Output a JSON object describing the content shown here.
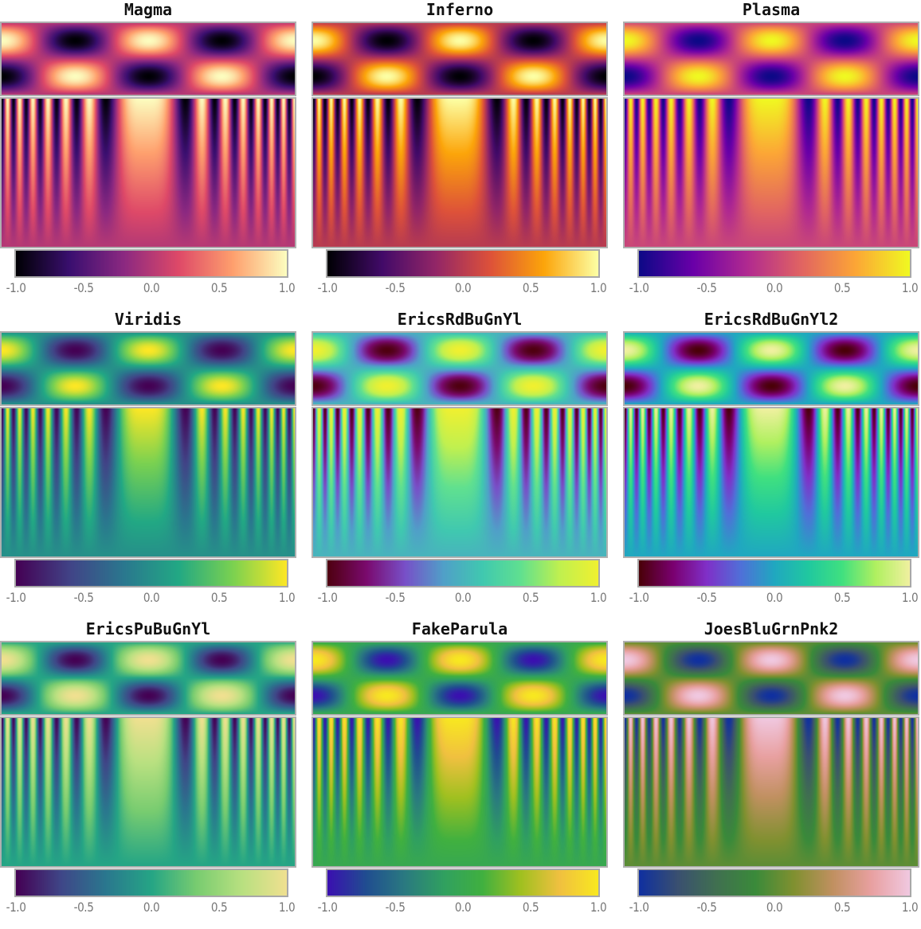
{
  "chart_data": {
    "type": "heatmap",
    "title": "",
    "colorbar_ticks": [
      "-1.0",
      "-0.5",
      "0.0",
      "0.5",
      "1.0"
    ],
    "colorbar_range": [
      -1,
      1
    ],
    "panels": [
      {
        "title": "Magma",
        "stops": [
          "#000004",
          "#3b0f70",
          "#8c2981",
          "#de4968",
          "#fe9f6d",
          "#fcfdbf"
        ]
      },
      {
        "title": "Inferno",
        "stops": [
          "#000004",
          "#420a68",
          "#932667",
          "#dd513a",
          "#fca50a",
          "#fcffa4"
        ]
      },
      {
        "title": "Plasma",
        "stops": [
          "#0d0887",
          "#6a00a8",
          "#b12a90",
          "#e16462",
          "#fca636",
          "#f0f921"
        ]
      },
      {
        "title": "Viridis",
        "stops": [
          "#440154",
          "#414487",
          "#2a788e",
          "#22a884",
          "#7ad151",
          "#fde725"
        ]
      },
      {
        "title": "EricsRdBuGnYl",
        "stops": [
          "#4f0010",
          "#7a0a6e",
          "#7850c8",
          "#50a0c8",
          "#40c8b0",
          "#60e090",
          "#c0f050",
          "#f0f030"
        ]
      },
      {
        "title": "EricsRdBuGnYl2",
        "stops": [
          "#4a0008",
          "#7a0070",
          "#8030c8",
          "#5070d8",
          "#20a8c0",
          "#20c8a0",
          "#40e080",
          "#b0f060",
          "#f0f0a0"
        ]
      },
      {
        "title": "EricsPuBuGnYl",
        "stops": [
          "#440154",
          "#3f4788",
          "#2a788e",
          "#25a585",
          "#78cc70",
          "#b8e080",
          "#f0e090"
        ]
      },
      {
        "title": "FakeParula",
        "stops": [
          "#3a10b0",
          "#204e90",
          "#2a7a80",
          "#30a060",
          "#40b040",
          "#a0c020",
          "#f0c040",
          "#f8e820"
        ]
      },
      {
        "title": "JoesBluGrnPnk2",
        "stops": [
          "#1030a0",
          "#3a5070",
          "#407050",
          "#3a8a3a",
          "#809030",
          "#c09060",
          "#e8a0a0",
          "#f0c8e0"
        ]
      }
    ]
  }
}
